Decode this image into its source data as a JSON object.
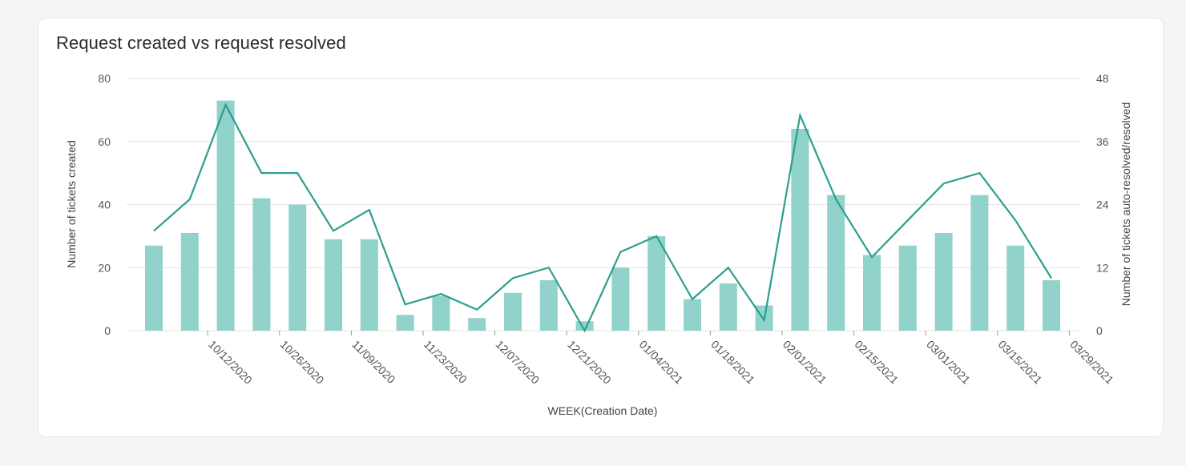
{
  "card": {
    "title": "Request created vs request resolved"
  },
  "colors": {
    "bar": "#91d2ca",
    "line": "#2c9e8e",
    "grid": "#e3e3e6"
  },
  "chart_data": {
    "type": "bar",
    "title": "Request created vs request resolved",
    "xlabel": "WEEK(Creation Date)",
    "ylabel": "Number of tickets created",
    "y2label": "Number of tickets auto-resolved/resolved",
    "ylim": [
      0,
      80
    ],
    "y2lim": [
      0,
      48
    ],
    "yticks": [
      0,
      20,
      40,
      60,
      80
    ],
    "y2ticks": [
      0,
      12,
      24,
      36,
      48
    ],
    "xtick_labels": [
      "10/12/2020",
      "10/26/2020",
      "11/09/2020",
      "11/23/2020",
      "12/07/2020",
      "12/21/2020",
      "01/04/2021",
      "01/18/2021",
      "02/01/2021",
      "02/15/2021",
      "03/01/2021",
      "03/15/2021",
      "03/29/2021"
    ],
    "categories": [
      "09/28/2020",
      "10/05/2020",
      "10/12/2020",
      "10/19/2020",
      "10/26/2020",
      "11/02/2020",
      "11/09/2020",
      "11/16/2020",
      "11/23/2020",
      "11/30/2020",
      "12/07/2020",
      "12/14/2020",
      "12/21/2020",
      "12/28/2020",
      "01/04/2021",
      "01/11/2021",
      "01/18/2021",
      "01/25/2021",
      "02/01/2021",
      "02/08/2021",
      "02/15/2021",
      "02/22/2021",
      "03/01/2021",
      "03/08/2021",
      "03/15/2021",
      "03/22/2021"
    ],
    "series": [
      {
        "name": "Number of tickets created",
        "type": "bar",
        "axis": "left",
        "values": [
          27,
          31,
          73,
          42,
          40,
          29,
          29,
          5,
          11,
          4,
          12,
          16,
          3,
          20,
          30,
          10,
          15,
          8,
          64,
          43,
          24,
          27,
          31,
          43,
          27,
          16
        ]
      },
      {
        "name": "Number of tickets auto-resolved/resolved",
        "type": "line",
        "axis": "right",
        "values": [
          19,
          25,
          43,
          30,
          30,
          19,
          23,
          5,
          7,
          4,
          10,
          12,
          0,
          15,
          18,
          6,
          12,
          2,
          41,
          25,
          14,
          21,
          28,
          30,
          21,
          10
        ]
      }
    ],
    "grid": true
  }
}
